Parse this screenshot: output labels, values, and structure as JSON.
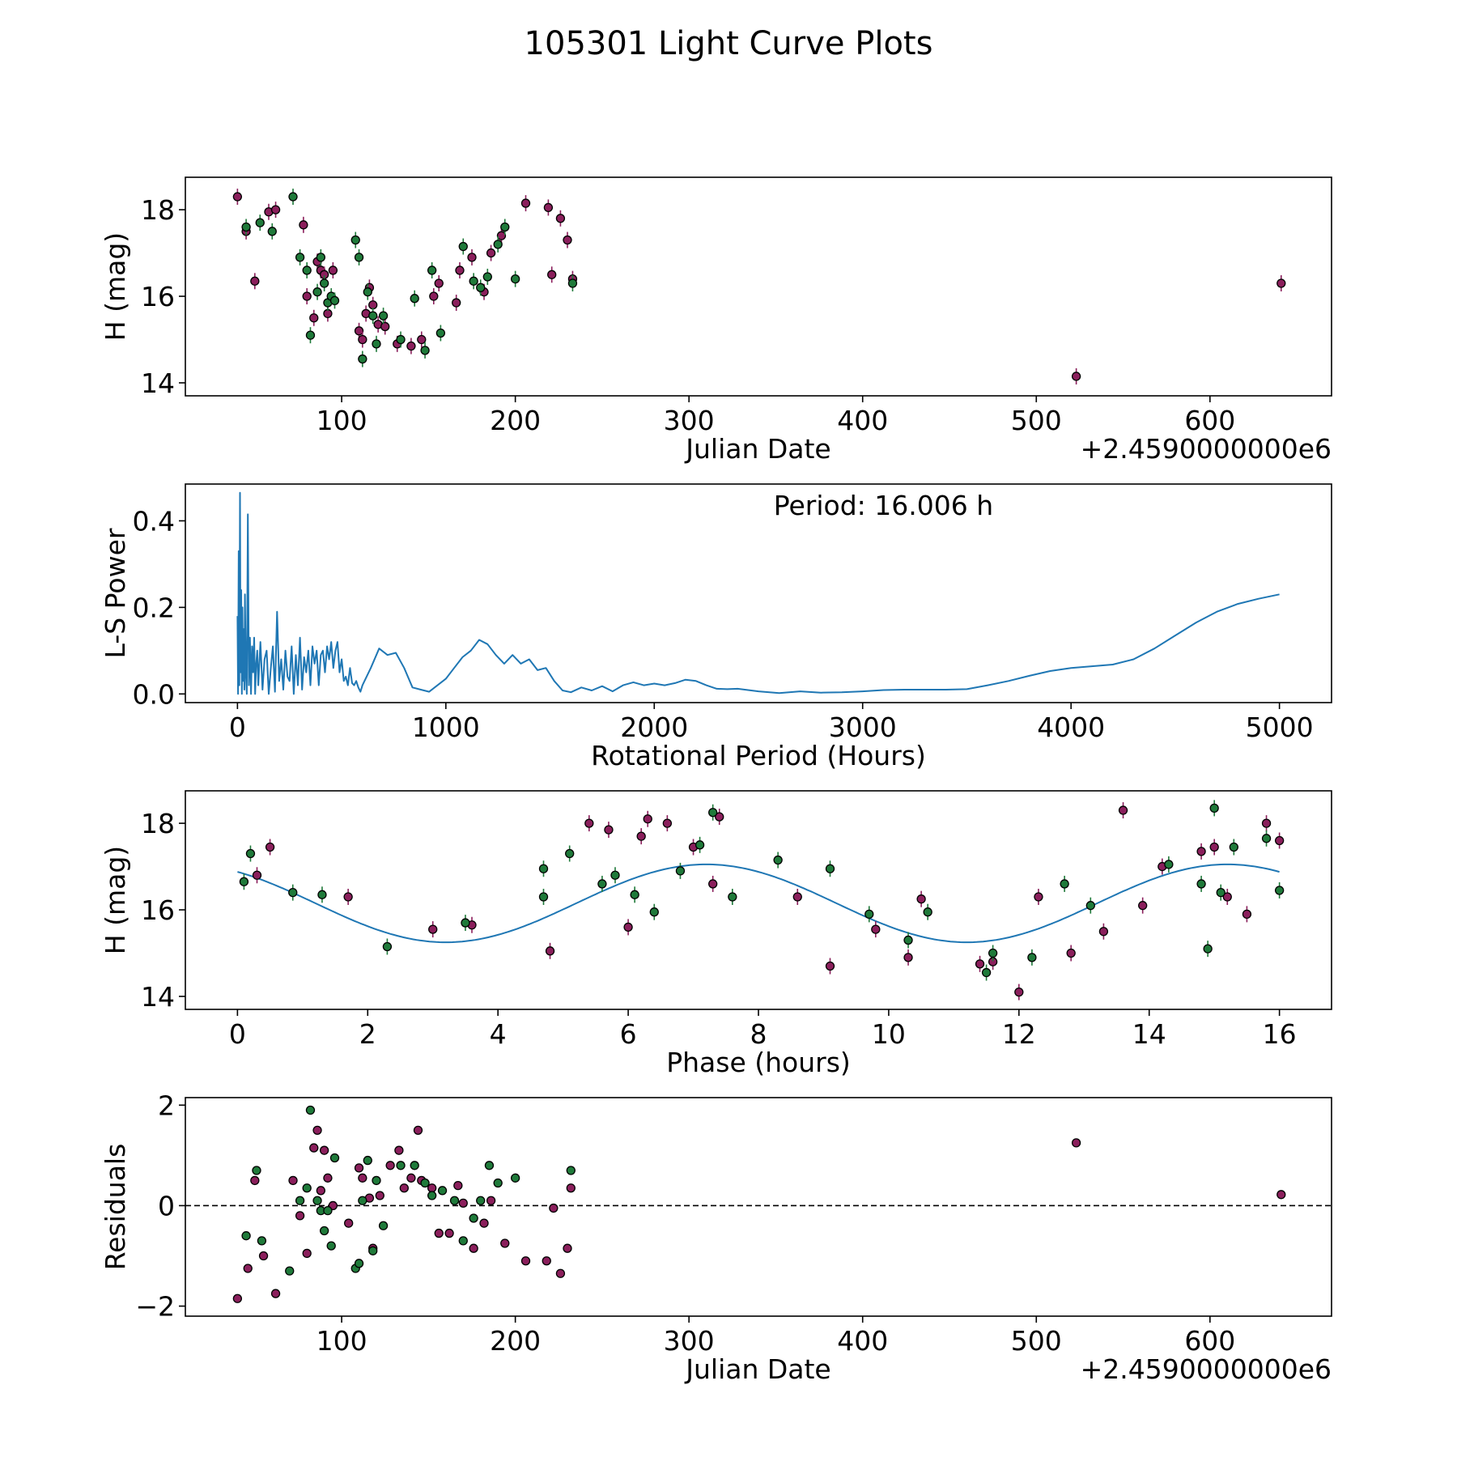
{
  "title": "105301 Light Curve Plots",
  "colors": {
    "filter_a": "#8b1f5c",
    "filter_b": "#1f7a3a",
    "model": "#1f77b4",
    "marker_edge": "#000000"
  },
  "chart_data": [
    {
      "type": "scatter",
      "name": "lightcurve",
      "xlabel": "Julian Date",
      "ylabel": "H (mag)",
      "offset_label": "+2.4590000000e6",
      "xlim": [
        10,
        670
      ],
      "ylim": [
        13.7,
        18.75
      ],
      "xticks": [
        100,
        200,
        300,
        400,
        500,
        600
      ],
      "yticks": [
        14,
        16,
        18
      ],
      "series": [
        {
          "name": "filter_a",
          "color": "#8b1f5c",
          "x": [
            40,
            45,
            50,
            58,
            62,
            78,
            80,
            84,
            86,
            88,
            90,
            92,
            95,
            110,
            112,
            114,
            116,
            118,
            121,
            125,
            132,
            140,
            146,
            153,
            156,
            166,
            168,
            175,
            182,
            186,
            192,
            206,
            219,
            221,
            226,
            230,
            233,
            523,
            641
          ],
          "y": [
            18.3,
            17.5,
            16.35,
            17.95,
            18.0,
            17.65,
            16.0,
            15.5,
            16.8,
            16.6,
            16.5,
            15.6,
            16.6,
            15.2,
            15.0,
            15.6,
            16.2,
            15.8,
            15.35,
            15.3,
            14.9,
            14.85,
            15.0,
            16.0,
            16.3,
            15.85,
            16.6,
            16.9,
            16.1,
            17.0,
            17.4,
            18.15,
            18.05,
            16.5,
            17.8,
            17.3,
            16.4,
            14.15,
            16.3
          ]
        },
        {
          "name": "filter_b",
          "color": "#1f7a3a",
          "x": [
            45,
            53,
            60,
            72,
            76,
            80,
            82,
            86,
            88,
            90,
            92,
            94,
            96,
            108,
            110,
            112,
            115,
            118,
            120,
            124,
            134,
            142,
            148,
            152,
            157,
            170,
            176,
            180,
            184,
            190,
            194,
            200,
            233
          ],
          "y": [
            17.6,
            17.7,
            17.5,
            18.3,
            16.9,
            16.6,
            15.1,
            16.1,
            16.9,
            16.3,
            15.85,
            16.0,
            15.9,
            17.3,
            16.9,
            14.55,
            16.1,
            15.55,
            14.9,
            15.55,
            15.0,
            15.95,
            14.75,
            16.6,
            15.15,
            17.15,
            16.35,
            16.2,
            16.45,
            17.2,
            17.6,
            16.4,
            16.3
          ]
        }
      ]
    },
    {
      "type": "line",
      "name": "periodogram",
      "xlabel": "Rotational Period (Hours)",
      "ylabel": "L-S Power",
      "annotation": "Period: 16.006 h",
      "xlim": [
        -250,
        5250
      ],
      "ylim": [
        -0.02,
        0.485
      ],
      "xticks": [
        0,
        1000,
        2000,
        3000,
        4000,
        5000
      ],
      "yticks": [
        0.0,
        0.2,
        0.4
      ],
      "ytick_labels": [
        "0.0",
        "0.2",
        "0.4"
      ],
      "curve": {
        "x": [
          600,
          640,
          680,
          720,
          760,
          800,
          840,
          880,
          920,
          960,
          1000,
          1040,
          1080,
          1120,
          1160,
          1200,
          1240,
          1280,
          1320,
          1360,
          1400,
          1440,
          1480,
          1520,
          1560,
          1600,
          1650,
          1700,
          1750,
          1800,
          1850,
          1900,
          1950,
          2000,
          2050,
          2100,
          2150,
          2200,
          2250,
          2300,
          2350,
          2400,
          2500,
          2600,
          2700,
          2800,
          2900,
          3000,
          3100,
          3200,
          3300,
          3400,
          3500,
          3600,
          3700,
          3800,
          3900,
          4000,
          4100,
          4200,
          4300,
          4400,
          4500,
          4600,
          4700,
          4800,
          4900,
          5000
        ],
        "y": [
          0.02,
          0.06,
          0.105,
          0.09,
          0.095,
          0.06,
          0.015,
          0.01,
          0.005,
          0.02,
          0.035,
          0.06,
          0.085,
          0.1,
          0.125,
          0.115,
          0.09,
          0.07,
          0.09,
          0.07,
          0.08,
          0.055,
          0.06,
          0.03,
          0.008,
          0.004,
          0.015,
          0.008,
          0.018,
          0.006,
          0.02,
          0.027,
          0.02,
          0.024,
          0.02,
          0.025,
          0.033,
          0.03,
          0.02,
          0.012,
          0.011,
          0.012,
          0.006,
          0.002,
          0.006,
          0.003,
          0.004,
          0.006,
          0.009,
          0.01,
          0.01,
          0.01,
          0.011,
          0.02,
          0.03,
          0.042,
          0.053,
          0.06,
          0.064,
          0.068,
          0.08,
          0.105,
          0.135,
          0.165,
          0.19,
          0.208,
          0.22,
          0.23
        ]
      },
      "spikes_below_600": {
        "x": [
          0,
          3,
          6,
          9,
          12,
          15,
          18,
          21,
          24,
          27,
          30,
          33,
          36,
          40,
          45,
          50,
          55,
          60,
          65,
          70,
          75,
          80,
          85,
          90,
          95,
          100,
          110,
          120,
          130,
          140,
          150,
          160,
          170,
          180,
          190,
          200,
          210,
          220,
          230,
          240,
          250,
          260,
          270,
          280,
          290,
          300,
          310,
          320,
          330,
          340,
          350,
          360,
          370,
          380,
          390,
          400,
          410,
          420,
          430,
          440,
          450,
          460,
          470,
          480,
          490,
          500,
          510,
          520,
          530,
          540,
          550,
          560,
          570,
          580,
          590
        ],
        "y": [
          0.18,
          0.0,
          0.33,
          0.02,
          0.465,
          0.05,
          0.24,
          0.0,
          0.2,
          0.03,
          0.15,
          0.01,
          0.23,
          0.05,
          0.0,
          0.415,
          0.02,
          0.13,
          0.0,
          0.11,
          0.05,
          0.13,
          0.0,
          0.07,
          0.1,
          0.02,
          0.12,
          0.01,
          0.08,
          0.1,
          0.0,
          0.06,
          0.11,
          0.005,
          0.19,
          0.03,
          0.08,
          0.01,
          0.1,
          0.04,
          0.03,
          0.11,
          0.0,
          0.09,
          0.02,
          0.13,
          0.01,
          0.085,
          0.05,
          0.1,
          0.02,
          0.11,
          0.07,
          0.1,
          0.02,
          0.09,
          0.1,
          0.05,
          0.11,
          0.08,
          0.12,
          0.06,
          0.1,
          0.12,
          0.05,
          0.08,
          0.03,
          0.04,
          0.02,
          0.06,
          0.025,
          0.02,
          0.03,
          0.015,
          0.005
        ]
      }
    },
    {
      "type": "scatter",
      "name": "phased",
      "xlabel": "Phase (hours)",
      "ylabel": "H (mag)",
      "xlim": [
        -0.8,
        16.8
      ],
      "ylim": [
        13.7,
        18.75
      ],
      "xticks": [
        0,
        2,
        4,
        6,
        8,
        10,
        12,
        14,
        16
      ],
      "yticks": [
        14,
        16,
        18
      ],
      "model": {
        "mean": 16.15,
        "amplitude": 0.9,
        "period_hours": 8.0,
        "phase_peak_hours": 7.2
      },
      "series": [
        {
          "name": "filter_a",
          "color": "#8b1f5c",
          "x": [
            0.3,
            0.5,
            1.7,
            3.0,
            3.6,
            4.8,
            5.4,
            5.7,
            6.0,
            6.2,
            6.3,
            6.6,
            7.0,
            7.3,
            7.4,
            8.6,
            9.1,
            9.8,
            10.3,
            10.5,
            11.4,
            11.6,
            12.0,
            12.3,
            12.8,
            13.3,
            13.6,
            13.9,
            14.2,
            14.8,
            15.0,
            15.2,
            15.5,
            15.8,
            16.0
          ],
          "y": [
            16.8,
            17.45,
            16.3,
            15.55,
            15.65,
            15.05,
            18.0,
            17.85,
            15.6,
            17.7,
            18.1,
            18.0,
            17.45,
            16.6,
            18.15,
            16.3,
            14.7,
            15.55,
            14.9,
            16.25,
            14.75,
            14.8,
            14.1,
            16.3,
            15.0,
            15.5,
            18.3,
            16.1,
            17.0,
            17.35,
            17.45,
            16.3,
            15.9,
            18.0,
            17.6
          ]
        },
        {
          "name": "filter_b",
          "color": "#1f7a3a",
          "x": [
            0.1,
            0.2,
            0.85,
            1.3,
            2.3,
            3.5,
            4.7,
            4.7,
            5.1,
            5.6,
            5.8,
            6.1,
            6.4,
            6.8,
            7.1,
            7.3,
            7.6,
            8.3,
            9.1,
            9.7,
            10.3,
            10.6,
            11.5,
            11.6,
            12.2,
            12.7,
            13.1,
            14.3,
            14.8,
            14.9,
            15.0,
            15.1,
            15.3,
            15.8,
            16.0
          ],
          "y": [
            16.65,
            17.3,
            16.4,
            16.35,
            15.15,
            15.7,
            16.3,
            16.95,
            17.3,
            16.6,
            16.8,
            16.35,
            15.95,
            16.9,
            17.5,
            18.25,
            16.3,
            17.15,
            16.95,
            15.9,
            15.3,
            15.95,
            14.55,
            15.0,
            14.9,
            16.6,
            16.1,
            17.05,
            16.6,
            15.1,
            18.35,
            16.4,
            17.45,
            17.65,
            16.45
          ]
        }
      ]
    },
    {
      "type": "scatter",
      "name": "residuals",
      "xlabel": "Julian Date",
      "ylabel": "Residuals",
      "offset_label": "+2.4590000000e6",
      "xlim": [
        10,
        670
      ],
      "ylim": [
        -2.2,
        2.15
      ],
      "xticks": [
        100,
        200,
        300,
        400,
        500,
        600
      ],
      "yticks": [
        -2,
        0,
        2
      ],
      "ytick_labels": [
        "−2",
        "0",
        "2"
      ],
      "zero_line": 0,
      "series": [
        {
          "name": "filter_a",
          "color": "#8b1f5c",
          "x": [
            40,
            46,
            50,
            55,
            62,
            72,
            76,
            80,
            84,
            86,
            88,
            90,
            92,
            95,
            104,
            110,
            112,
            116,
            118,
            122,
            128,
            133,
            136,
            140,
            144,
            146,
            152,
            156,
            162,
            167,
            170,
            176,
            182,
            186,
            194,
            206,
            218,
            222,
            226,
            230,
            232,
            523,
            641
          ],
          "y": [
            -1.85,
            -1.25,
            0.5,
            -1.0,
            -1.75,
            0.5,
            -0.2,
            -0.95,
            1.15,
            1.5,
            0.3,
            1.1,
            0.55,
            0.0,
            -0.35,
            0.75,
            0.55,
            0.15,
            -0.85,
            0.2,
            0.8,
            1.1,
            0.35,
            0.55,
            1.5,
            0.5,
            0.35,
            -0.55,
            -0.55,
            0.4,
            0.05,
            -0.85,
            -0.35,
            0.1,
            -0.75,
            -1.1,
            -1.1,
            -0.05,
            -1.35,
            -0.85,
            0.35,
            1.25,
            0.22
          ]
        },
        {
          "name": "filter_b",
          "color": "#1f7a3a",
          "x": [
            45,
            51,
            54,
            70,
            76,
            80,
            82,
            86,
            88,
            90,
            92,
            94,
            96,
            108,
            110,
            112,
            115,
            118,
            120,
            124,
            134,
            142,
            148,
            152,
            158,
            165,
            170,
            176,
            180,
            185,
            190,
            200,
            232
          ],
          "y": [
            -0.6,
            0.7,
            -0.7,
            -1.3,
            0.1,
            0.35,
            1.9,
            0.1,
            -0.1,
            -0.5,
            -0.1,
            -0.8,
            0.95,
            -1.25,
            -1.15,
            0.1,
            0.9,
            -0.9,
            0.5,
            -0.4,
            0.8,
            0.8,
            0.45,
            0.2,
            0.3,
            0.1,
            -0.7,
            -0.25,
            0.1,
            0.8,
            0.45,
            0.55,
            0.7
          ]
        }
      ]
    }
  ]
}
